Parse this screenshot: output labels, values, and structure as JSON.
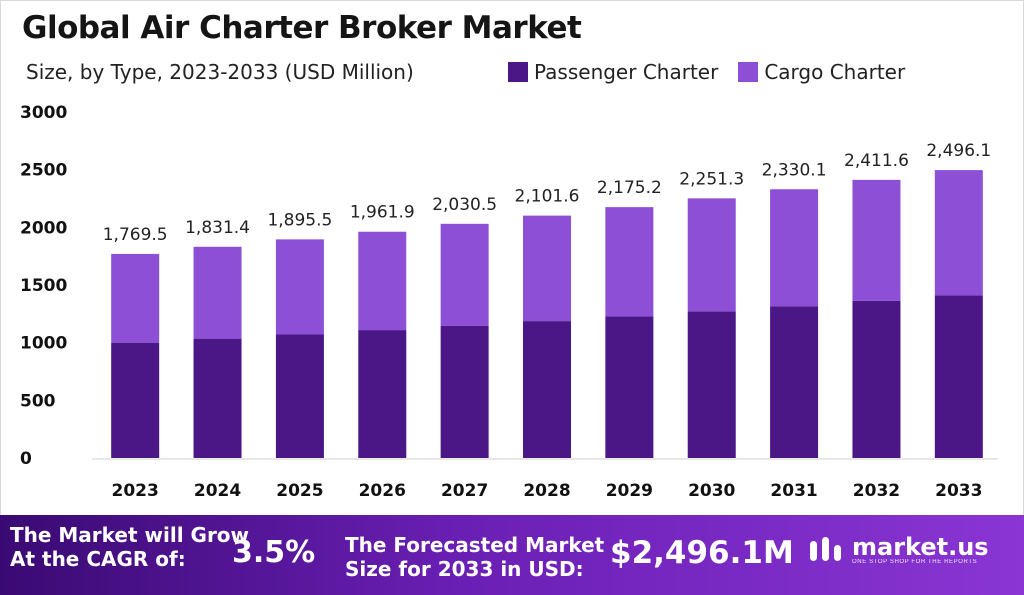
{
  "header": {
    "title": "Global Air Charter Broker Market",
    "subtitle": "Size, by Type, 2023-2033 (USD Million)"
  },
  "colors": {
    "passenger": "#4b1685",
    "cargo": "#8c4fd6",
    "footer_start": "#3a0a73",
    "footer_end": "#8a35d4"
  },
  "chart_data": {
    "type": "bar",
    "stacked": true,
    "categories": [
      "2023",
      "2024",
      "2025",
      "2026",
      "2027",
      "2028",
      "2029",
      "2030",
      "2031",
      "2032",
      "2033"
    ],
    "series": [
      {
        "name": "Passenger Charter",
        "values": [
          1000,
          1035,
          1071,
          1109,
          1147,
          1187,
          1229,
          1272,
          1316,
          1362,
          1410
        ]
      },
      {
        "name": "Cargo Charter",
        "values": [
          769.5,
          796.4,
          824.5,
          852.9,
          883.5,
          914.6,
          946.2,
          979.3,
          1014.1,
          1049.6,
          1086.1
        ]
      }
    ],
    "totals": [
      1769.5,
      1831.4,
      1895.5,
      1961.9,
      2030.5,
      2101.6,
      2175.2,
      2251.3,
      2330.1,
      2411.6,
      2496.1
    ],
    "total_labels": [
      "1,769.5",
      "1,831.4",
      "1,895.5",
      "1,961.9",
      "2,030.5",
      "2,101.6",
      "2,175.2",
      "2,251.3",
      "2,330.1",
      "2,411.6",
      "2,496.1"
    ],
    "ylim": [
      0,
      3000
    ],
    "yticks": [
      0,
      500,
      1000,
      1500,
      2000,
      2500,
      3000
    ],
    "grid": false,
    "legend_position": "top-right"
  },
  "footer": {
    "cagr_label_line1": "The Market will Grow",
    "cagr_label_line2": "At the CAGR of:",
    "cagr_value": "3.5%",
    "forecast_label_line1": "The Forecasted Market",
    "forecast_label_line2": "Size for 2033 in USD:",
    "forecast_value": "$2,496.1M",
    "brand_name": "market.us",
    "brand_tagline": "ONE STOP SHOP FOR THE REPORTS"
  }
}
